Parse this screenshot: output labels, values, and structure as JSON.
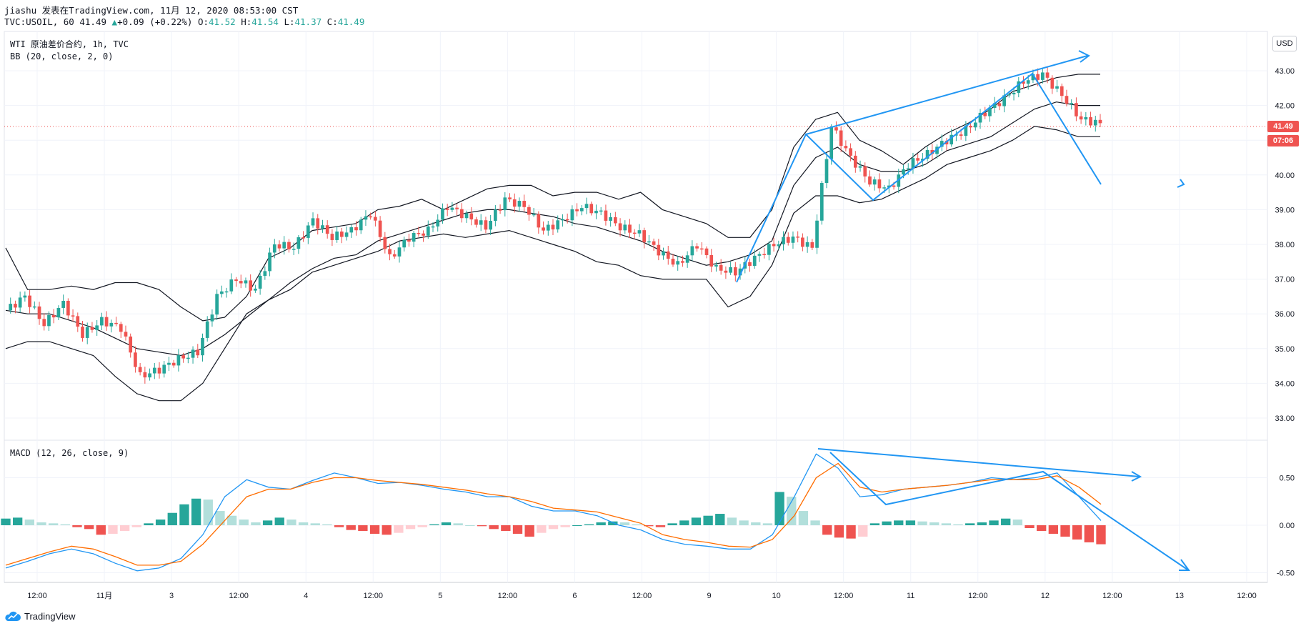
{
  "header": {
    "line1": "jiashu 发表在TradingView.com, 11月 12, 2020 08:53:00 CST",
    "symbol": "TVC:USOIL, 60",
    "last": "41.49",
    "change": "+0.09 (+0.22%)",
    "o_label": "O:",
    "o": "41.52",
    "h_label": "H:",
    "h": "41.54",
    "l_label": "L:",
    "l": "41.37",
    "c_label": "C:",
    "c": "41.49"
  },
  "overlays": {
    "title": "WTI 原油差价合约, 1h, TVC",
    "bb": "BB (20, close, 2, 0)",
    "macd": "MACD (12, 26, close, 9)"
  },
  "currency": "USD",
  "last_price_tag": "41.49",
  "countdown_tag": "07:06",
  "colors": {
    "up": "#26a69a",
    "down": "#ef5350",
    "up_light": "#b2dfdb",
    "down_light": "#ffcdd2",
    "macd": "#2196f3",
    "signal": "#ff6d00",
    "drawing": "#2196f3",
    "tag": "#ef5350"
  },
  "brand": "TradingView",
  "chart_data": [
    {
      "type": "candlestick",
      "title": "WTI 原油差价合约, 1h, TVC",
      "ylim": [
        32.6,
        43.8
      ],
      "y_ticks": [
        "43.00",
        "42.00",
        "41.00",
        "40.00",
        "39.00",
        "38.00",
        "37.00",
        "36.00",
        "35.00",
        "34.00",
        "33.00"
      ],
      "x_ticks": [
        "12:00",
        "11月",
        "3",
        "12:00",
        "4",
        "12:00",
        "5",
        "12:00",
        "6",
        "12:00",
        "9",
        "10",
        "12:00",
        "11",
        "12:00",
        "12",
        "12:00",
        "13",
        "12:00"
      ],
      "anchors": [
        36.1,
        36.5,
        35.7,
        36.3,
        35.4,
        35.8,
        35.6,
        34.2,
        34.4,
        34.7,
        34.9,
        36.5,
        37.0,
        36.7,
        38.0,
        37.9,
        38.7,
        38.2,
        38.4,
        38.9,
        37.6,
        38.2,
        38.4,
        39.1,
        38.8,
        38.5,
        39.3,
        39.1,
        38.4,
        38.7,
        39.1,
        38.9,
        38.5,
        38.3,
        37.8,
        37.4,
        38.0,
        37.3,
        37.2,
        37.6,
        38.0,
        38.2,
        37.9,
        41.4,
        40.5,
        39.8,
        39.6,
        40.3,
        40.6,
        41.0,
        41.3,
        41.8,
        42.2,
        42.7,
        42.9,
        42.3,
        41.6,
        41.49
      ],
      "bollinger": {
        "upper": [
          37.9,
          36.7,
          36.7,
          36.8,
          36.7,
          36.9,
          36.9,
          36.7,
          36.2,
          35.8,
          35.9,
          36.5,
          37.6,
          37.9,
          38.4,
          38.5,
          38.6,
          39.0,
          39.1,
          39.3,
          39.0,
          39.3,
          39.6,
          39.7,
          39.7,
          39.4,
          39.5,
          39.5,
          39.3,
          39.5,
          39.0,
          38.8,
          38.6,
          38.2,
          38.2,
          39.0,
          40.8,
          41.6,
          41.8,
          41.0,
          40.7,
          40.3,
          40.8,
          41.2,
          41.5,
          41.9,
          42.4,
          42.6,
          42.8,
          42.9,
          42.9
        ],
        "middle": [
          36.1,
          36.0,
          36.0,
          35.8,
          35.6,
          35.3,
          35.0,
          34.9,
          34.8,
          35.0,
          35.4,
          35.9,
          36.4,
          36.9,
          37.3,
          37.6,
          37.7,
          38.1,
          38.3,
          38.5,
          38.7,
          38.9,
          39.0,
          39.0,
          38.9,
          38.8,
          38.6,
          38.5,
          38.3,
          38.1,
          37.8,
          37.6,
          37.4,
          37.5,
          37.7,
          38.1,
          39.7,
          40.5,
          40.8,
          40.3,
          40.1,
          40.1,
          40.3,
          40.7,
          40.9,
          41.1,
          41.5,
          41.9,
          42.1,
          42.0,
          42.0
        ],
        "lower": [
          35.0,
          35.2,
          35.2,
          35.0,
          34.8,
          34.2,
          33.7,
          33.5,
          33.5,
          34.0,
          35.0,
          36.0,
          36.4,
          36.7,
          37.2,
          37.4,
          37.6,
          37.8,
          38.1,
          38.2,
          38.3,
          38.2,
          38.3,
          38.4,
          38.2,
          38.0,
          37.8,
          37.5,
          37.4,
          37.1,
          37.0,
          37.0,
          37.0,
          36.2,
          36.5,
          37.4,
          38.9,
          39.4,
          39.4,
          39.2,
          39.3,
          39.6,
          39.9,
          40.3,
          40.5,
          40.7,
          41.0,
          41.4,
          41.3,
          41.1,
          41.1
        ]
      }
    },
    {
      "type": "macd",
      "title": "MACD (12, 26, close, 9)",
      "ylim": [
        -0.72,
        0.92
      ],
      "y_ticks": [
        "0.50",
        "0.00",
        "-0.50"
      ],
      "macd": [
        -0.45,
        -0.38,
        -0.3,
        -0.25,
        -0.3,
        -0.4,
        -0.48,
        -0.45,
        -0.35,
        -0.1,
        0.3,
        0.48,
        0.4,
        0.38,
        0.47,
        0.55,
        0.5,
        0.44,
        0.45,
        0.42,
        0.38,
        0.35,
        0.3,
        0.3,
        0.2,
        0.15,
        0.15,
        0.1,
        0.0,
        -0.05,
        -0.15,
        -0.2,
        -0.22,
        -0.25,
        -0.25,
        -0.1,
        0.3,
        0.75,
        0.6,
        0.3,
        0.32,
        0.38,
        0.4,
        0.42,
        0.45,
        0.5,
        0.48,
        0.5,
        0.55,
        0.3,
        0.05
      ],
      "signal": [
        -0.42,
        -0.35,
        -0.28,
        -0.22,
        -0.25,
        -0.33,
        -0.42,
        -0.42,
        -0.38,
        -0.2,
        0.05,
        0.3,
        0.38,
        0.38,
        0.45,
        0.5,
        0.5,
        0.47,
        0.45,
        0.43,
        0.4,
        0.37,
        0.33,
        0.3,
        0.25,
        0.18,
        0.16,
        0.14,
        0.08,
        0.02,
        -0.1,
        -0.15,
        -0.18,
        -0.22,
        -0.23,
        -0.15,
        0.1,
        0.5,
        0.65,
        0.4,
        0.35,
        0.38,
        0.4,
        0.42,
        0.45,
        0.48,
        0.48,
        0.48,
        0.52,
        0.4,
        0.22
      ],
      "histogram": [
        0.07,
        0.08,
        0.06,
        0.03,
        0.02,
        0.01,
        -0.02,
        -0.04,
        -0.1,
        -0.09,
        -0.06,
        -0.02,
        0.02,
        0.06,
        0.13,
        0.22,
        0.28,
        0.27,
        0.15,
        0.1,
        0.06,
        0.03,
        0.05,
        0.08,
        0.06,
        0.03,
        0.02,
        0.01,
        -0.02,
        -0.05,
        -0.06,
        -0.09,
        -0.1,
        -0.08,
        -0.04,
        -0.02,
        0.01,
        0.03,
        0.02,
        0.0,
        -0.01,
        -0.04,
        -0.06,
        -0.09,
        -0.12,
        -0.08,
        -0.04,
        -0.02,
        0.0,
        0.01,
        0.03,
        0.04,
        0.03,
        0.01,
        -0.01,
        -0.02,
        0.02,
        0.05,
        0.08,
        0.1,
        0.12,
        0.08,
        0.05,
        0.03,
        0.02,
        0.35,
        0.3,
        0.15,
        0.05,
        -0.1,
        -0.13,
        -0.14,
        -0.12,
        0.02,
        0.04,
        0.05,
        0.05,
        0.04,
        0.03,
        0.02,
        0.01,
        0.02,
        0.03,
        0.05,
        0.07,
        0.06,
        -0.03,
        -0.06,
        -0.09,
        -0.12,
        -0.15,
        -0.18,
        -0.2
      ]
    }
  ]
}
